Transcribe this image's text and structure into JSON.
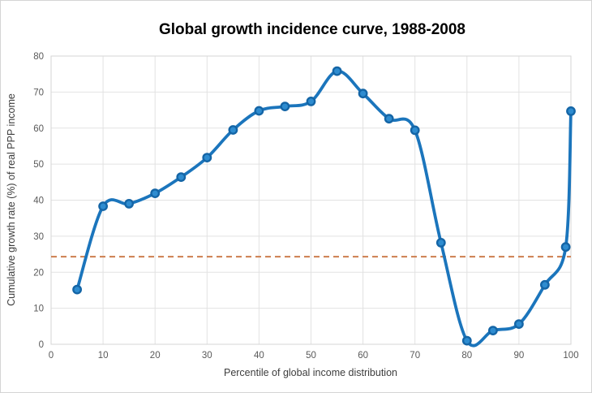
{
  "title": "Global growth incidence curve, 1988-2008",
  "chart_data": {
    "type": "line",
    "title": "Global growth incidence curve, 1988-2008",
    "xlabel": "Percentile of global income distribution",
    "ylabel": "Cumulative growth rate (%) of real PPP income",
    "x": [
      5,
      10,
      15,
      20,
      25,
      30,
      35,
      40,
      45,
      50,
      55,
      60,
      65,
      70,
      75,
      80,
      85,
      90,
      95,
      99,
      100
    ],
    "series": [
      {
        "name": "Cumulative growth rate (%) of real PPP income",
        "values": [
          15.2,
          38.3,
          39.0,
          41.9,
          46.4,
          51.8,
          59.5,
          64.8,
          66.0,
          67.4,
          75.8,
          69.6,
          62.6,
          59.4,
          28.2,
          1.0,
          3.8,
          5.6,
          16.5,
          27.0,
          64.7
        ]
      }
    ],
    "reference_line": {
      "value": 24.3,
      "style": "dashed"
    },
    "xlim": [
      0,
      100
    ],
    "ylim": [
      0,
      80
    ],
    "xticks": [
      0,
      10,
      20,
      30,
      40,
      50,
      60,
      70,
      80,
      90,
      100
    ],
    "yticks": [
      0,
      10,
      20,
      30,
      40,
      50,
      60,
      70,
      80
    ],
    "grid": true,
    "legend": false,
    "marker": "circle"
  },
  "colors": {
    "line": "#1b75bc",
    "marker_fill": "#2e8cd0",
    "marker_stroke": "#1465a6",
    "dashed_line": "#cd7e4e",
    "grid": "#e2e2e2",
    "plot_border": "#d6d6d6",
    "tick_text": "#595959",
    "axis_text": "#3d3d3d",
    "title_text": "#000000",
    "background": "#ffffff"
  }
}
